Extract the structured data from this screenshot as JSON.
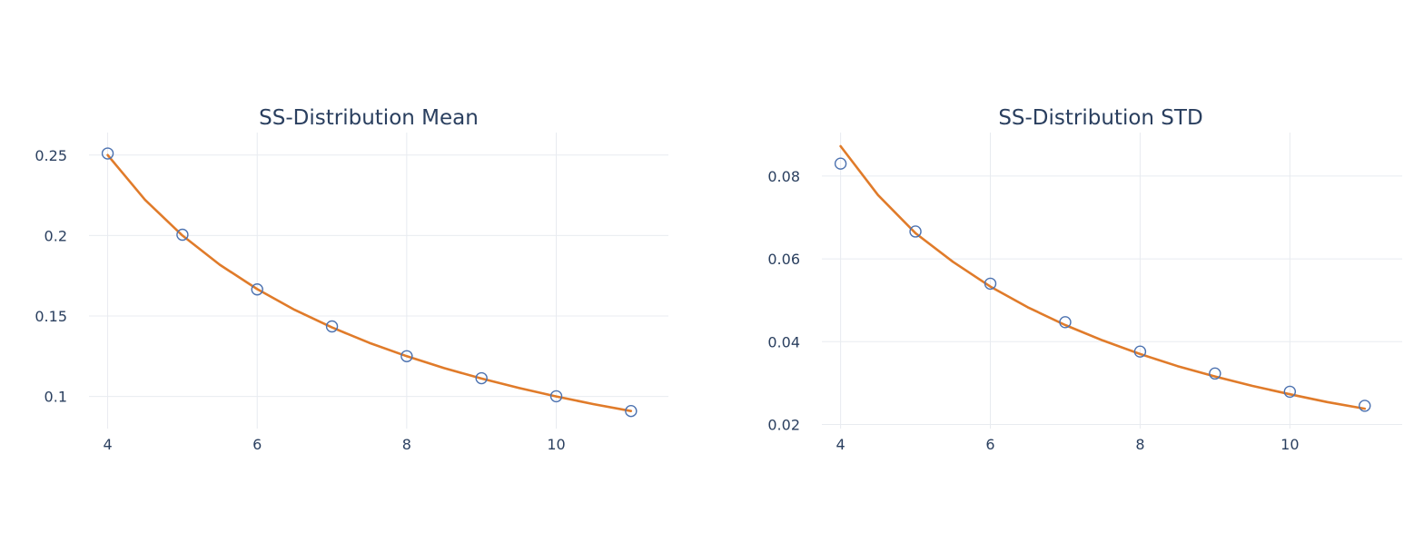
{
  "chart_data": [
    {
      "type": "scatter",
      "title": "SS-Distribution Mean",
      "xlabel": "",
      "ylabel": "",
      "xlim": [
        3.75,
        11.5
      ],
      "ylim": [
        0.08,
        0.264
      ],
      "xticks": [
        4,
        6,
        8,
        10
      ],
      "yticks": [
        0.1,
        0.15,
        0.2,
        0.25
      ],
      "ytick_labels": [
        "0.1",
        "0.15",
        "0.2",
        "0.25"
      ],
      "grid": true,
      "series": [
        {
          "kind": "markers",
          "marker": "open-circle",
          "color": "#4c72b0",
          "x": [
            4,
            5,
            6,
            7,
            8,
            9,
            10,
            11
          ],
          "y": [
            0.251,
            0.2005,
            0.1665,
            0.1435,
            0.125,
            0.1113,
            0.1001,
            0.0909
          ]
        },
        {
          "kind": "line",
          "color": "#e07b2a",
          "x": [
            4,
            4.5,
            5,
            5.5,
            6,
            6.5,
            7,
            7.5,
            8,
            8.5,
            9,
            9.5,
            10,
            10.5,
            11
          ],
          "y": [
            0.25,
            0.2222,
            0.2,
            0.1818,
            0.1667,
            0.1538,
            0.1429,
            0.1333,
            0.125,
            0.1176,
            0.1111,
            0.1053,
            0.1,
            0.0952,
            0.0909
          ]
        }
      ]
    },
    {
      "type": "scatter",
      "title": "SS-Distribution STD",
      "xlabel": "",
      "ylabel": "",
      "xlim": [
        3.75,
        11.5
      ],
      "ylim": [
        0.019,
        0.0905
      ],
      "xticks": [
        4,
        6,
        8,
        10
      ],
      "yticks": [
        0.02,
        0.04,
        0.06,
        0.08
      ],
      "ytick_labels": [
        "0.02",
        "0.04",
        "0.06",
        "0.08"
      ],
      "grid": true,
      "series": [
        {
          "kind": "markers",
          "marker": "open-circle",
          "color": "#4c72b0",
          "x": [
            4,
            5,
            6,
            7,
            8,
            9,
            10,
            11
          ],
          "y": [
            0.083,
            0.0666,
            0.054,
            0.0447,
            0.0376,
            0.0323,
            0.0279,
            0.0245
          ]
        },
        {
          "kind": "line",
          "color": "#e07b2a",
          "x": [
            4,
            4.5,
            5,
            5.5,
            6,
            6.5,
            7,
            7.5,
            8,
            8.5,
            9,
            9.5,
            10,
            10.5,
            11
          ],
          "y": [
            0.0872,
            0.0754,
            0.0662,
            0.0593,
            0.0533,
            0.0483,
            0.044,
            0.0403,
            0.037,
            0.0341,
            0.0316,
            0.0293,
            0.0273,
            0.0254,
            0.0238
          ]
        }
      ]
    }
  ]
}
